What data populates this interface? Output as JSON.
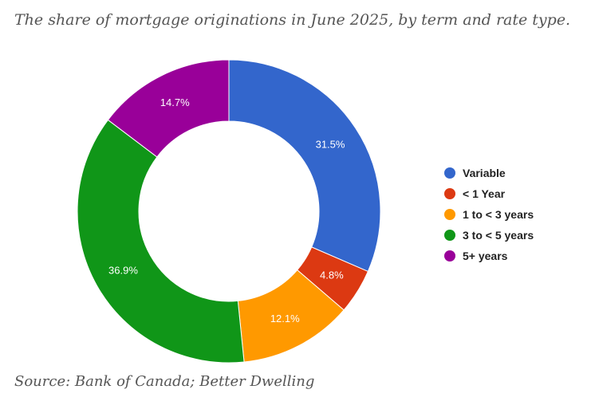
{
  "chart_data": {
    "type": "pie",
    "title": "The share of mortgage originations in June 2025, by term and rate type.",
    "source": "Source: Bank of Canada; Better Dwelling",
    "donut": true,
    "legend_position": "right",
    "slices": [
      {
        "name": "Variable",
        "value": 31.5,
        "label": "31.5%",
        "color": "#3366cc"
      },
      {
        "name": "< 1 Year",
        "value": 4.8,
        "label": "4.8%",
        "color": "#dc3912"
      },
      {
        "name": "1 to < 3 years",
        "value": 12.1,
        "label": "12.1%",
        "color": "#ff9900"
      },
      {
        "name": "3 to < 5 years",
        "value": 36.9,
        "label": "36.9%",
        "color": "#109618"
      },
      {
        "name": "5+ years",
        "value": 14.7,
        "label": "14.7%",
        "color": "#990099"
      }
    ]
  }
}
